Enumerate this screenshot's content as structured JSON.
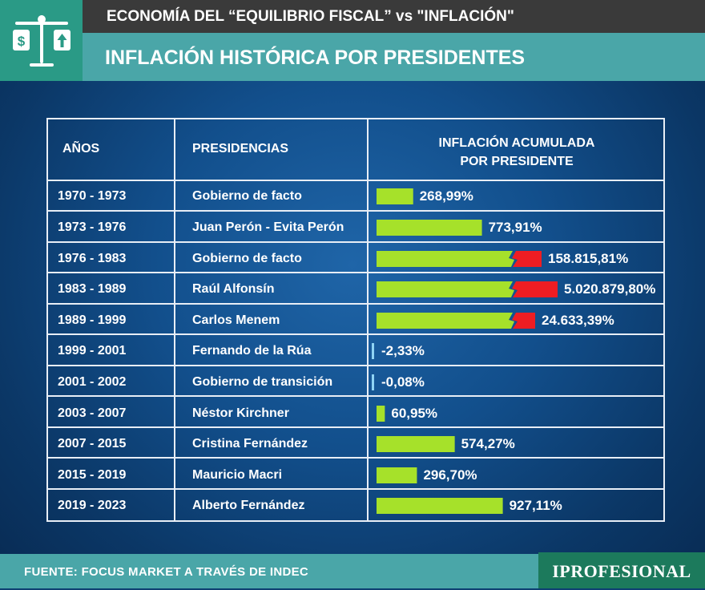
{
  "header": {
    "title": "ECONOMÍA DEL “EQUILIBRIO FISCAL” vs \"INFLACIÓN\"",
    "subtitle": "INFLACIÓN HISTÓRICA POR PRESIDENTES",
    "logo_icon": "scale-money-icon"
  },
  "chart_data": {
    "type": "table",
    "columns": [
      "AÑOS",
      "PRESIDENCIAS",
      "INFLACIÓN ACUMULADA",
      "POR PRESIDENTE"
    ],
    "rows": [
      {
        "years": "1970 - 1973",
        "president": "Gobierno de facto",
        "inflation": 268.99,
        "label": "268,99%",
        "truncated": false
      },
      {
        "years": "1973 - 1976",
        "president": "Juan Perón - Evita Perón",
        "inflation": 773.91,
        "label": "773,91%",
        "truncated": false
      },
      {
        "years": "1976 - 1983",
        "president": "Gobierno de facto",
        "inflation": 158815.81,
        "label": "158.815,81%",
        "truncated": true
      },
      {
        "years": "1983 - 1989",
        "president": "Raúl Alfonsín",
        "inflation": 5020879.8,
        "label": "5.020.879,80%",
        "truncated": true
      },
      {
        "years": "1989 - 1999",
        "president": "Carlos Menem",
        "inflation": 24633.39,
        "label": "24.633,39%",
        "truncated": true
      },
      {
        "years": "1999 - 2001",
        "president": "Fernando de la Rúa",
        "inflation": -2.33,
        "label": "-2,33%",
        "truncated": false
      },
      {
        "years": "2001 - 2002",
        "president": "Gobierno de transición",
        "inflation": -0.08,
        "label": "-0,08%",
        "truncated": false
      },
      {
        "years": "2003 - 2007",
        "president": "Néstor Kirchner",
        "inflation": 60.95,
        "label": "60,95%",
        "truncated": false
      },
      {
        "years": "2007  - 2015",
        "president": "Cristina Fernández",
        "inflation": 574.27,
        "label": "574,27%",
        "truncated": false
      },
      {
        "years": "2015 - 2019",
        "president": "Mauricio Macri",
        "inflation": 296.7,
        "label": "296,70%",
        "truncated": false
      },
      {
        "years": "2019 - 2023",
        "president": "Alberto Fernández",
        "inflation": 927.11,
        "label": "927,11%",
        "truncated": false
      }
    ],
    "bar_scale_max": 1000
  },
  "colors": {
    "bar_positive": "#a6e12a",
    "bar_overflow": "#ee1d23",
    "bar_negative": "#8fd3f4",
    "teal": "#4aa6a8",
    "dark_header": "#3a3a3a",
    "brand_green": "#1c7a5c"
  },
  "footer": {
    "source": "FUENTE: FOCUS MARKET A TRAVÉS DE INDEC",
    "brand": "IPROFESIONAL"
  }
}
